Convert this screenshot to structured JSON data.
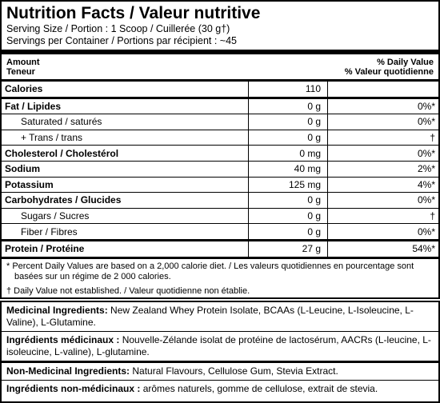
{
  "label": {
    "title": "Nutrition Facts / Valeur nutritive",
    "serving_size": "Serving Size / Portion : 1 Scoop / Cuillerée (30 g†)",
    "servings": "Servings per Container / Portions par récipient : ~45",
    "header": {
      "amount": "Amount",
      "amount_fr": "Teneur",
      "dv": "% Daily Value",
      "dv_fr": "% Valeur quotidienne"
    },
    "rows": [
      [
        "Calories",
        "110",
        ""
      ],
      [
        "Fat / Lipides",
        "0 g",
        "0%*"
      ],
      [
        "Saturated / saturés",
        "0 g",
        "0%*"
      ],
      [
        "+ Trans / trans",
        "0 g",
        "†"
      ],
      [
        "Cholesterol / Cholestérol",
        "0 mg",
        "0%*"
      ],
      [
        "Sodium",
        "40 mg",
        "2%*"
      ],
      [
        "Potassium",
        "125 mg",
        "4%*"
      ],
      [
        "Carbohydrates / Glucides",
        "0 g",
        "0%*"
      ],
      [
        "Sugars / Sucres",
        "0 g",
        "†"
      ],
      [
        "Fiber / Fibres",
        "0 g",
        "0%*"
      ],
      [
        "Protein / Protéine",
        "27 g",
        "54%*"
      ]
    ],
    "footnotes": [
      "*  Percent Daily Values are based on a 2,000 calorie diet. / Les valeurs quotidiennes en pourcentage sont basées sur un régime de 2 000 calories.",
      "†  Daily Value not established. / Valeur quotidienne non établie."
    ]
  },
  "ingredients": [
    {
      "label": "Medicinal Ingredients:",
      "text": "New Zealand Whey Protein Isolate, BCAAs (L-Leucine, L-Isoleucine, L-Valine), L-Glutamine."
    },
    {
      "label": "Ingrédients médicinaux :",
      "text": "Nouvelle-Zélande isolat de protéine de lactosérum, AACRs (L-leucine, L-isoleucine, L-valine), L-glutamine."
    },
    {
      "label": "Non-Medicinal Ingredients:",
      "text": "Natural Flavours, Cellulose Gum, Stevia Extract."
    },
    {
      "label": "Ingrédients non-médicinaux :",
      "text": "arômes naturels, gomme de cellulose, extrait de stevia."
    }
  ]
}
